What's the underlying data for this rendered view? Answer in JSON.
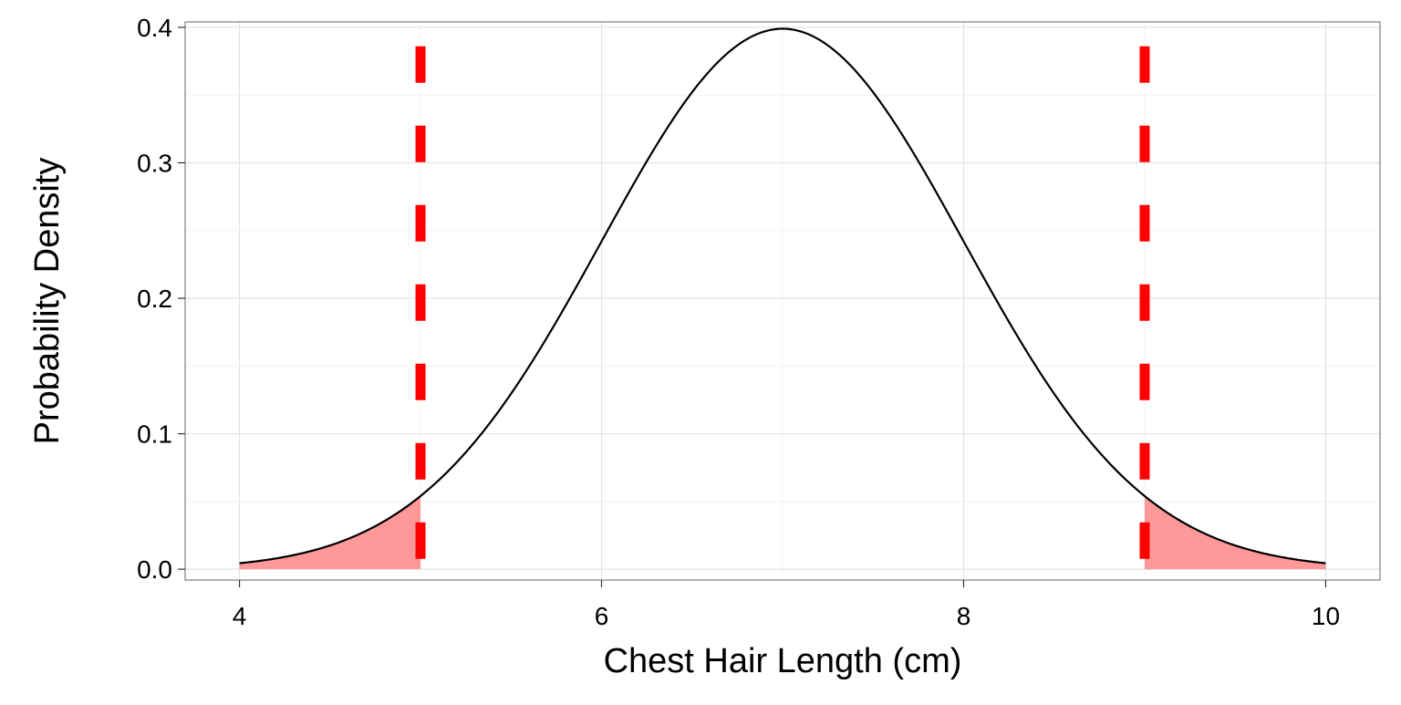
{
  "chart_data": {
    "type": "area",
    "title": "",
    "xlabel": "Chest Hair Length (cm)",
    "ylabel": "Probability Density",
    "xlim": [
      3.7,
      10.3
    ],
    "ylim": [
      -0.008,
      0.404
    ],
    "x_ticks": [
      4,
      6,
      8,
      10
    ],
    "x_tick_labels": [
      "4",
      "6",
      "8",
      "10"
    ],
    "y_ticks": [
      0.0,
      0.1,
      0.2,
      0.3,
      0.4
    ],
    "y_tick_labels": [
      "0.0",
      "0.1",
      "0.2",
      "0.3",
      "0.4"
    ],
    "grid": true,
    "legend": "none",
    "series": [
      {
        "kind": "density-curve",
        "distribution": "normal",
        "mean": 7,
        "sd": 1,
        "x_range": [
          4,
          10
        ],
        "color": "#000000"
      }
    ],
    "shaded_regions": [
      {
        "x_range": [
          4,
          5
        ],
        "color": "#ff9999"
      },
      {
        "x_range": [
          9,
          10
        ],
        "color": "#ff9999"
      }
    ],
    "reference_lines": [
      {
        "x": 5,
        "style": "dashed",
        "color": "#ff0000"
      },
      {
        "x": 9,
        "style": "dashed",
        "color": "#ff0000"
      }
    ]
  }
}
